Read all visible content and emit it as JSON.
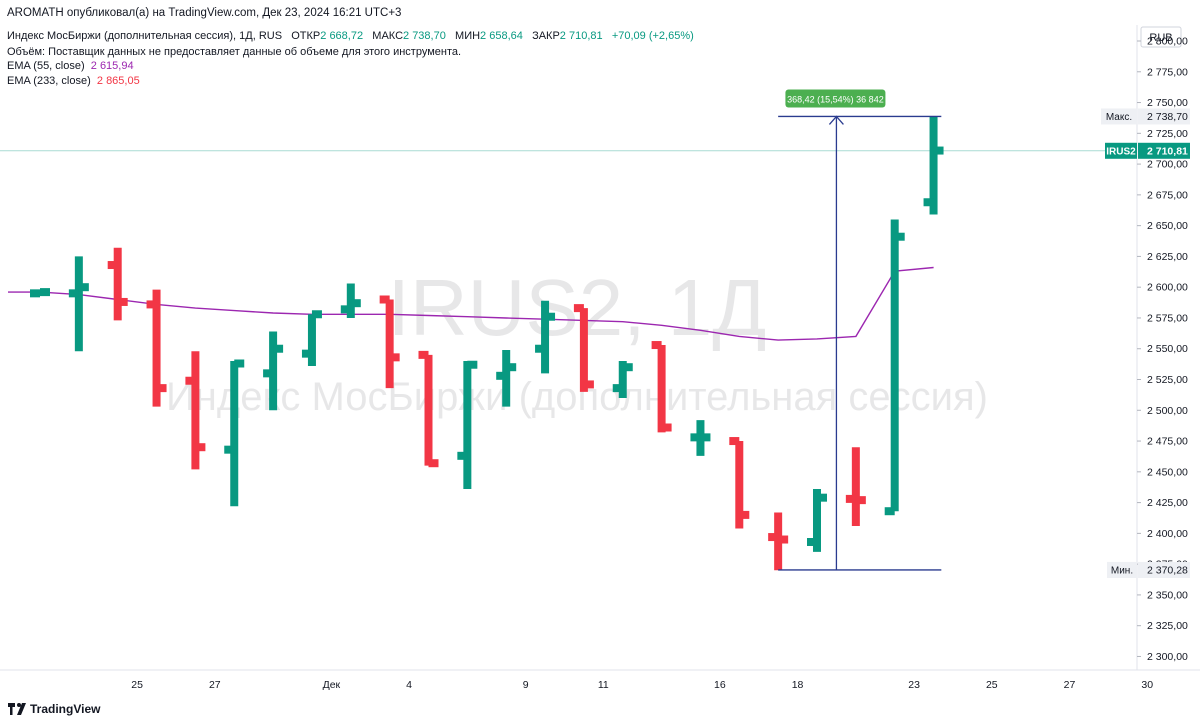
{
  "header": {
    "published": "AROMATH опубликовал(а) на TradingView.com, Дек 23, 2024 16:21 UTC+3",
    "instrument": "Индекс МосБиржи (дополнительная сессия), 1Д, RUS",
    "o_label": "ОТКР",
    "o_value": "2 668,72",
    "h_label": "МАКС",
    "h_value": "2 738,70",
    "l_label": "МИН",
    "l_value": "2 658,64",
    "c_label": "ЗАКР",
    "c_value": "2 710,81",
    "change": "+70,09 (+2,65%)",
    "volume_note": "Объём: Поставщик данных не предоставляет данные об объеме для этого инструмента.",
    "ema55_label": "EMA (55, close)",
    "ema55_value": "2 615,94",
    "ema233_label": "EMA (233, close)",
    "ema233_value": "2 865,05"
  },
  "footer": {
    "brand": "TradingView"
  },
  "colors": {
    "up": "#089981",
    "down": "#f23645",
    "ema55": "#9c27b0",
    "ema233": "#f23645",
    "measure": "#2a3b8f",
    "measure_label_bg": "#4caf50"
  },
  "chart_data": {
    "type": "ohlc",
    "watermark": [
      "IRUS2, 1Д",
      "Индекс МосБиржи (дополнительная сессия)"
    ],
    "currency": "RUB",
    "y_ticks": [
      "2 800,00",
      "2 775,00",
      "2 750,00",
      "2 725,00",
      "2 700,00",
      "2 675,00",
      "2 650,00",
      "2 625,00",
      "2 600,00",
      "2 575,00",
      "2 550,00",
      "2 525,00",
      "2 500,00",
      "2 475,00",
      "2 450,00",
      "2 425,00",
      "2 400,00",
      "2 375,00",
      "2 350,00",
      "2 325,00",
      "2 300,00"
    ],
    "y_tick_values": [
      2800,
      2775,
      2750,
      2725,
      2700,
      2675,
      2650,
      2625,
      2600,
      2575,
      2550,
      2525,
      2500,
      2475,
      2450,
      2425,
      2400,
      2375,
      2350,
      2325,
      2300
    ],
    "x_labels": [
      "25",
      "27",
      "Дек",
      "4",
      "9",
      "11",
      "16",
      "18",
      "23",
      "25",
      "27",
      "30"
    ],
    "x_label_index": [
      2.5,
      4.5,
      7.5,
      9.5,
      12.5,
      14.5,
      17.5,
      19.5,
      22.5,
      24.5,
      26.5,
      28.5
    ],
    "ylim": [
      2289,
      2813
    ],
    "candles": [
      {
        "o": 2595,
        "h": 2598,
        "l": 2594,
        "c": 2596
      },
      {
        "o": 2595,
        "h": 2625,
        "l": 2548,
        "c": 2600
      },
      {
        "o": 2618,
        "h": 2632,
        "l": 2573,
        "c": 2588
      },
      {
        "o": 2586,
        "h": 2598,
        "l": 2503,
        "c": 2518
      },
      {
        "o": 2524,
        "h": 2548,
        "l": 2452,
        "c": 2470
      },
      {
        "o": 2468,
        "h": 2540,
        "l": 2422,
        "c": 2538
      },
      {
        "o": 2530,
        "h": 2564,
        "l": 2500,
        "c": 2550
      },
      {
        "o": 2546,
        "h": 2578,
        "l": 2536,
        "c": 2578
      },
      {
        "o": 2582,
        "h": 2603,
        "l": 2575,
        "c": 2587
      },
      {
        "o": 2590,
        "h": 2590,
        "l": 2518,
        "c": 2543
      },
      {
        "o": 2545,
        "h": 2545,
        "l": 2455,
        "c": 2457
      },
      {
        "o": 2463,
        "h": 2540,
        "l": 2436,
        "c": 2537
      },
      {
        "o": 2528,
        "h": 2549,
        "l": 2503,
        "c": 2535
      },
      {
        "o": 2550,
        "h": 2589,
        "l": 2530,
        "c": 2576
      },
      {
        "o": 2583,
        "h": 2583,
        "l": 2515,
        "c": 2521
      },
      {
        "o": 2518,
        "h": 2540,
        "l": 2510,
        "c": 2535
      },
      {
        "o": 2553,
        "h": 2553,
        "l": 2482,
        "c": 2486
      },
      {
        "o": 2478,
        "h": 2492,
        "l": 2463,
        "c": 2478
      },
      {
        "o": 2475,
        "h": 2475,
        "l": 2404,
        "c": 2415
      },
      {
        "o": 2397,
        "h": 2417,
        "l": 2370,
        "c": 2395
      },
      {
        "o": 2393,
        "h": 2436,
        "l": 2385,
        "c": 2429
      },
      {
        "o": 2428,
        "h": 2470,
        "l": 2406,
        "c": 2427
      },
      {
        "o": 2418,
        "h": 2655,
        "l": 2418,
        "c": 2641
      },
      {
        "o": 2669,
        "h": 2739,
        "l": 2659,
        "c": 2711
      }
    ],
    "ema55": [
      2596,
      2594,
      2590,
      2586,
      2583,
      2581,
      2579,
      2578,
      2578,
      2578,
      2577,
      2576,
      2575,
      2574,
      2573,
      2572,
      2569,
      2565,
      2560,
      2557,
      2558,
      2560,
      2613,
      2616
    ],
    "ema233_value": 2865.05,
    "last_price": 2710.81,
    "last_price_label": "IRUS2",
    "last_price_text": "2 710,81",
    "high_marker": {
      "label": "Макс.",
      "value": 2738.7,
      "text": "2 738,70"
    },
    "low_marker": {
      "label": "Мин.",
      "value": 2370.28,
      "text": "2 370,28"
    },
    "measure": {
      "from": 2370.28,
      "to": 2738.7,
      "label": "368,42 (15,54%) 36 842"
    }
  }
}
